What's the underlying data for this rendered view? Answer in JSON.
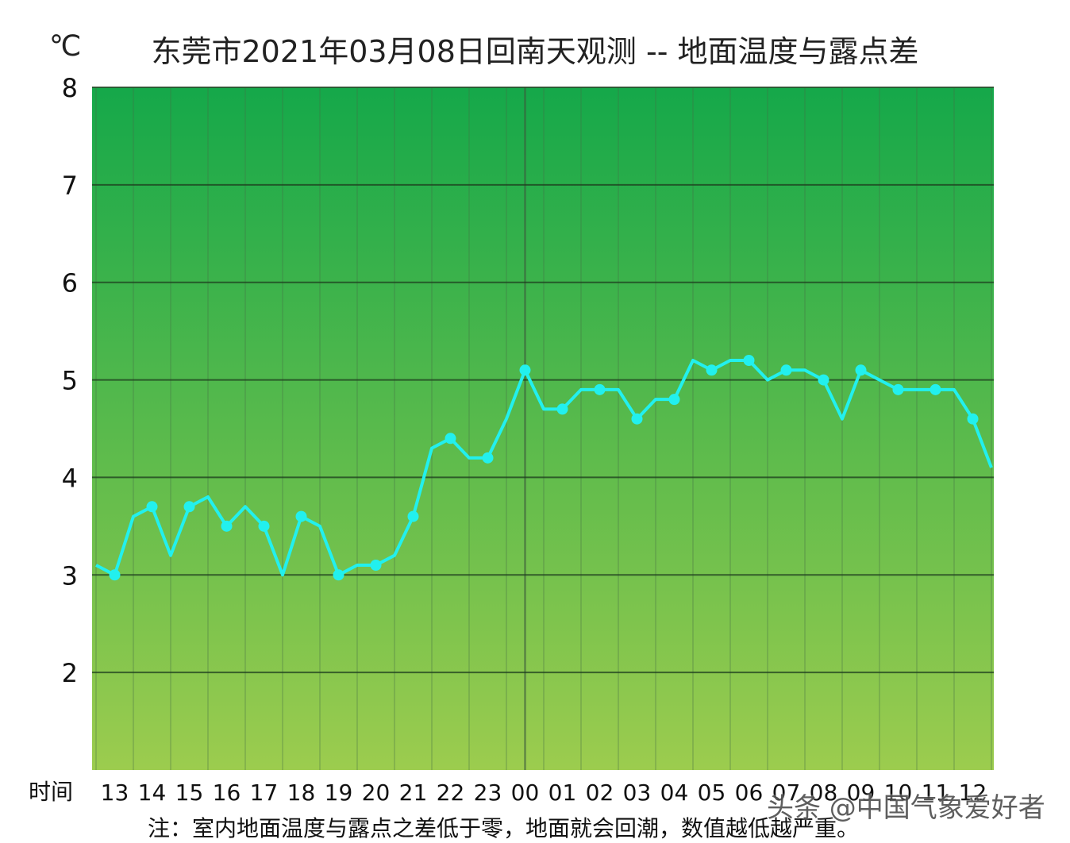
{
  "chart_data": {
    "type": "line",
    "title": "东莞市2021年03月08日回南天观测 -- 地面温度与露点差",
    "ylabel": "℃",
    "xlabel": "时间",
    "ylim": [
      1,
      8
    ],
    "yticks": [
      2,
      3,
      4,
      5,
      6,
      7,
      8
    ],
    "x_tick_labels": [
      "13",
      "14",
      "15",
      "16",
      "17",
      "18",
      "19",
      "20",
      "21",
      "22",
      "23",
      "00",
      "01",
      "02",
      "03",
      "04",
      "05",
      "06",
      "07",
      "08",
      "09",
      "10",
      "11",
      "12"
    ],
    "grid": true,
    "series": [
      {
        "values": [
          3.1,
          3.0,
          3.6,
          3.7,
          3.2,
          3.7,
          3.8,
          3.5,
          3.7,
          3.5,
          3.0,
          3.6,
          3.5,
          3.0,
          3.1,
          3.1,
          3.2,
          3.6,
          4.3,
          4.4,
          4.2,
          4.2,
          4.6,
          5.1,
          4.7,
          4.7,
          4.9,
          4.9,
          4.9,
          4.6,
          4.8,
          4.8,
          5.2,
          5.1,
          5.2,
          5.2,
          5.0,
          5.1,
          5.1,
          5.0,
          4.6,
          5.1,
          5.0,
          4.9,
          4.9,
          4.9,
          4.9,
          4.6,
          4.1
        ],
        "marked_indices": [
          1,
          3,
          5,
          7,
          9,
          11,
          13,
          15,
          17,
          19,
          21,
          23,
          25,
          27,
          29,
          31,
          33,
          35,
          37,
          39,
          41,
          43,
          45,
          47
        ],
        "color": "#22f0ee"
      }
    ],
    "background_gradient": [
      "#15a84a",
      "#9ccc4e"
    ]
  },
  "note": "注：室内地面温度与露点之差低于零，地面就会回潮，数值越低越严重。",
  "watermark": "头条 @中国气象爱好者"
}
